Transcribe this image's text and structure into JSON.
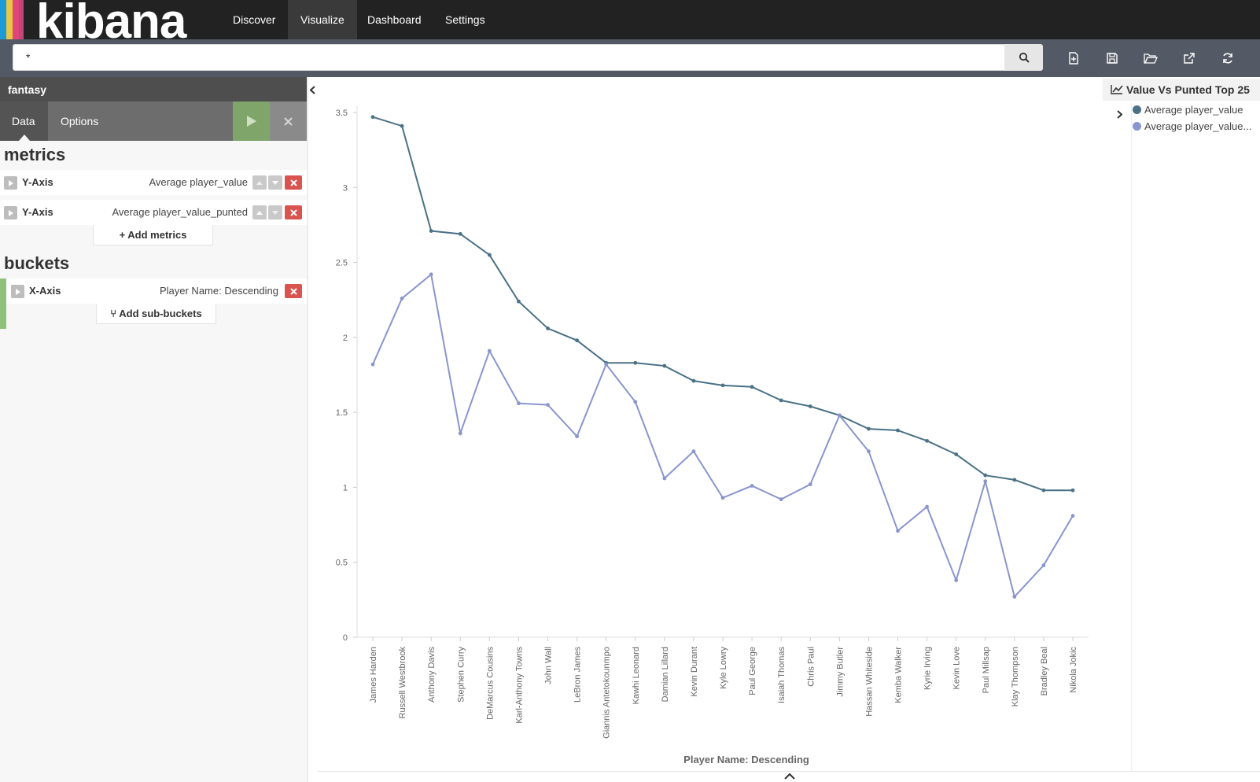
{
  "app": {
    "logo_text": "kibana",
    "logo_stripes": [
      "#1f9ad8",
      "#e8c744",
      "#e0457b",
      "#2c2c2c"
    ]
  },
  "nav": {
    "tabs": [
      {
        "label": "Discover",
        "active": false
      },
      {
        "label": "Visualize",
        "active": true
      },
      {
        "label": "Dashboard",
        "active": false
      },
      {
        "label": "Settings",
        "active": false
      }
    ]
  },
  "query": {
    "value": "*",
    "icons": [
      "search-icon",
      "new-document-icon",
      "save-icon",
      "open-folder-icon",
      "share-icon",
      "refresh-icon"
    ]
  },
  "sidebar": {
    "index_pattern": "fantasy",
    "tabs": [
      {
        "label": "Data",
        "active": true
      },
      {
        "label": "Options",
        "active": false
      }
    ],
    "metrics_title": "metrics",
    "metrics": [
      {
        "label": "Y-Axis",
        "description": "Average player_value"
      },
      {
        "label": "Y-Axis",
        "description": "Average player_value_punted"
      }
    ],
    "add_metrics": "Add metrics",
    "buckets_title": "buckets",
    "buckets": [
      {
        "label": "X-Axis",
        "description": "Player Name: Descending"
      }
    ],
    "add_buckets": "Add sub-buckets"
  },
  "legend": {
    "title": "Value Vs Punted Top 25",
    "items": [
      {
        "label": "Average player_value",
        "color": "#4a7186"
      },
      {
        "label": "Average player_value...",
        "color": "#8995cf"
      }
    ]
  },
  "chart_data": {
    "type": "line",
    "xlabel": "Player Name: Descending",
    "ylabel": "",
    "ylim": [
      0,
      3.5
    ],
    "yticks": [
      "0",
      "0.5",
      "1",
      "1.5",
      "2",
      "2.5",
      "3",
      "3.5"
    ],
    "grid": false,
    "legend_position": "top-right",
    "categories": [
      "James Harden",
      "Russell Westbrook",
      "Anthony Davis",
      "Stephen Curry",
      "DeMarcus Cousins",
      "Karl-Anthony Towns",
      "John Wall",
      "LeBron James",
      "Giannis Antetokounmpo",
      "Kawhi Leonard",
      "Damian Lillard",
      "Kevin Durant",
      "Kyle Lowry",
      "Paul George",
      "Isaiah Thomas",
      "Chris Paul",
      "Jimmy Butler",
      "Hassan Whiteside",
      "Kemba Walker",
      "Kyrie Irving",
      "Kevin Love",
      "Paul Millsap",
      "Klay Thompson",
      "Bradley Beal",
      "Nikola Jokic"
    ],
    "series": [
      {
        "name": "Average player_value",
        "color": "#4a7186",
        "values": [
          3.47,
          3.41,
          2.71,
          2.69,
          2.55,
          2.24,
          2.06,
          1.98,
          1.83,
          1.83,
          1.81,
          1.71,
          1.68,
          1.67,
          1.58,
          1.54,
          1.48,
          1.39,
          1.38,
          1.31,
          1.22,
          1.08,
          1.05,
          0.98,
          0.98
        ]
      },
      {
        "name": "Average player_value...",
        "color": "#8995cf",
        "values": [
          1.82,
          2.26,
          2.42,
          1.36,
          1.91,
          1.56,
          1.55,
          1.34,
          1.82,
          1.57,
          1.06,
          1.24,
          0.93,
          1.01,
          0.92,
          1.02,
          1.48,
          1.24,
          0.71,
          0.87,
          0.38,
          1.04,
          0.27,
          0.48,
          0.81
        ]
      }
    ]
  }
}
